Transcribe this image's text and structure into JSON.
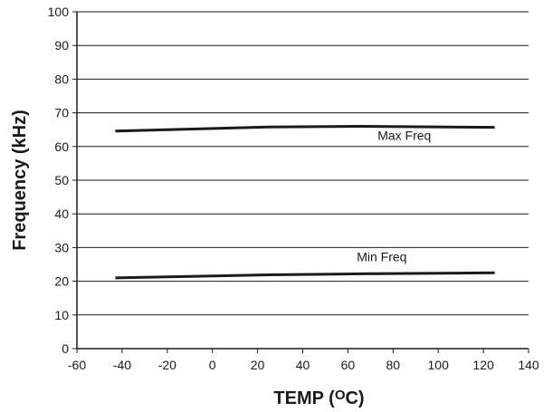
{
  "chart_data": {
    "type": "line",
    "xlabel": "TEMP (",
    "xlabel_degree": "O",
    "xlabel_unit": "C)",
    "ylabel": "Frequency (kHz)",
    "xlim": [
      -60,
      140
    ],
    "ylim": [
      0,
      100
    ],
    "x_ticks": [
      -60,
      -40,
      -20,
      0,
      20,
      40,
      60,
      80,
      100,
      120,
      140
    ],
    "y_ticks": [
      0,
      10,
      20,
      30,
      40,
      50,
      60,
      70,
      80,
      90,
      100
    ],
    "grid": "horizontal",
    "series": [
      {
        "name": "Max Freq",
        "x": [
          -43,
          25,
          65,
          125
        ],
        "y": [
          64.6,
          65.8,
          66.0,
          65.7
        ],
        "label_at": [
          85,
          62
        ]
      },
      {
        "name": "Min Freq",
        "x": [
          -43,
          25,
          65,
          125
        ],
        "y": [
          21.0,
          21.9,
          22.2,
          22.5
        ],
        "label_at": [
          75,
          26
        ]
      }
    ],
    "colors": {
      "line": "#1a1a1a",
      "axis": "#1a1a1a",
      "grid": "#1a1a1a"
    }
  }
}
